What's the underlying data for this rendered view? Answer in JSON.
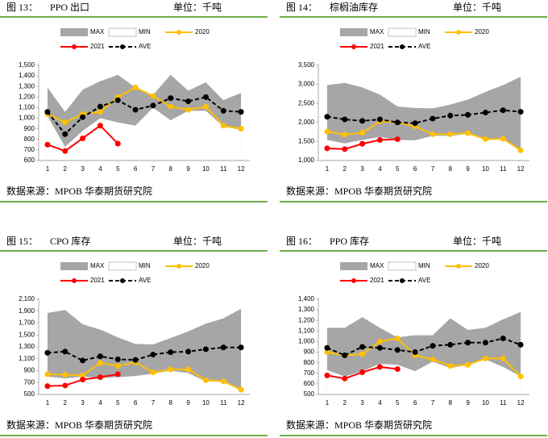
{
  "chart_data": [
    {
      "type": "line",
      "figure_label": "图 13：",
      "title": "PPO 出口",
      "unit": "单位：千吨",
      "source": "数据来源：MPOB  华泰期货研究院",
      "categories": [
        1,
        2,
        3,
        4,
        5,
        6,
        7,
        8,
        9,
        10,
        11,
        12
      ],
      "ylim": [
        600,
        1500
      ],
      "yticks": [
        600,
        700,
        800,
        900,
        {
          "value": 1000,
          "label": "1,000"
        },
        {
          "value": 1100,
          "label": "1,100"
        },
        {
          "value": 1200,
          "label": "1,200"
        },
        {
          "value": 1300,
          "label": "1,300"
        },
        {
          "value": 1400,
          "label": "1,400"
        },
        {
          "value": 1500,
          "label": "1,500"
        }
      ],
      "series": [
        {
          "name": "MAX",
          "color": "#a6a6a6",
          "style": "area",
          "values": [
            1290,
            1060,
            1270,
            1350,
            1410,
            1290,
            1220,
            1410,
            1260,
            1340,
            1170,
            1240
          ]
        },
        {
          "name": "MIN",
          "color": "#ffffff",
          "style": "area",
          "values": [
            1020,
            730,
            880,
            1000,
            960,
            930,
            1100,
            980,
            1070,
            1070,
            920,
            890
          ]
        },
        {
          "name": "2020",
          "color": "#ffc000",
          "style": "line",
          "values": [
            1040,
            960,
            1040,
            1060,
            1200,
            1290,
            1210,
            1110,
            1080,
            1110,
            930,
            900
          ]
        },
        {
          "name": "2021",
          "color": "#ff0000",
          "style": "line",
          "values": [
            750,
            690,
            810,
            930,
            760,
            null,
            null,
            null,
            null,
            null,
            null,
            null
          ]
        },
        {
          "name": "AVE",
          "color": "#000000",
          "style": "dash",
          "values": [
            1060,
            850,
            1010,
            1110,
            1170,
            1080,
            1120,
            1190,
            1160,
            1200,
            1070,
            1060
          ]
        }
      ]
    },
    {
      "type": "line",
      "figure_label": "图 14：",
      "title": "棕榈油库存",
      "unit": "单位：千吨",
      "source": "数据来源：MPOB  华泰期货研究院",
      "categories": [
        1,
        2,
        3,
        4,
        5,
        6,
        7,
        8,
        9,
        10,
        11,
        12
      ],
      "ylim": [
        1000,
        3500
      ],
      "yticks": [
        {
          "value": 1000,
          "label": "1,000"
        },
        {
          "value": 1500,
          "label": "1,500"
        },
        {
          "value": 2000,
          "label": "2,000"
        },
        {
          "value": 2500,
          "label": "2,500"
        },
        {
          "value": 3000,
          "label": "3,000"
        },
        {
          "value": 3500,
          "label": "3,500"
        }
      ],
      "series": [
        {
          "name": "MAX",
          "color": "#a6a6a6",
          "style": "area",
          "values": [
            2980,
            3040,
            2920,
            2730,
            2420,
            2380,
            2370,
            2470,
            2600,
            2800,
            2980,
            3200
          ]
        },
        {
          "name": "MIN",
          "color": "#ffffff",
          "style": "area",
          "values": [
            1540,
            1450,
            1540,
            1620,
            1540,
            1530,
            1650,
            1650,
            1700,
            1580,
            1560,
            1240
          ]
        },
        {
          "name": "2020",
          "color": "#ffc000",
          "style": "line",
          "values": [
            1760,
            1680,
            1730,
            2030,
            2000,
            1900,
            1690,
            1690,
            1720,
            1560,
            1570,
            1270
          ]
        },
        {
          "name": "2021",
          "color": "#ff0000",
          "style": "line",
          "values": [
            1320,
            1300,
            1440,
            1540,
            1560,
            null,
            null,
            null,
            null,
            null,
            null,
            null
          ]
        },
        {
          "name": "AVE",
          "color": "#000000",
          "style": "dash",
          "values": [
            2150,
            2080,
            2040,
            2080,
            2000,
            1980,
            2100,
            2180,
            2200,
            2260,
            2320,
            2280
          ]
        }
      ]
    },
    {
      "type": "line",
      "figure_label": "图 15：",
      "title": "CPO 库存",
      "unit": "单位：千吨",
      "source": "数据来源：MPOB  华泰期货研究院",
      "categories": [
        1,
        2,
        3,
        4,
        5,
        6,
        7,
        8,
        9,
        10,
        11,
        12
      ],
      "ylim": [
        500,
        2100
      ],
      "yticks": [
        500,
        700,
        900,
        {
          "value": 1100,
          "label": "1,100"
        },
        {
          "value": 1300,
          "label": "1,300"
        },
        {
          "value": 1500,
          "label": "1,500"
        },
        {
          "value": 1700,
          "label": "1,700"
        },
        {
          "value": 1900,
          "label": "1,900"
        },
        {
          "value": 2100,
          "label": "2,100"
        }
      ],
      "series": [
        {
          "name": "MAX",
          "color": "#a6a6a6",
          "style": "area",
          "values": [
            1870,
            1920,
            1680,
            1590,
            1460,
            1350,
            1340,
            1450,
            1560,
            1690,
            1780,
            1940
          ]
        },
        {
          "name": "MIN",
          "color": "#ffffff",
          "style": "area",
          "values": [
            800,
            770,
            800,
            780,
            790,
            810,
            850,
            900,
            860,
            720,
            720,
            560
          ]
        },
        {
          "name": "2020",
          "color": "#ffc000",
          "style": "line",
          "values": [
            840,
            830,
            820,
            1030,
            980,
            1040,
            870,
            920,
            920,
            740,
            720,
            580
          ]
        },
        {
          "name": "2021",
          "color": "#ff0000",
          "style": "line",
          "values": [
            640,
            650,
            750,
            790,
            840,
            null,
            null,
            null,
            null,
            null,
            null,
            null
          ]
        },
        {
          "name": "AVE",
          "color": "#000000",
          "style": "dash",
          "values": [
            1200,
            1220,
            1070,
            1140,
            1090,
            1080,
            1170,
            1210,
            1220,
            1260,
            1290,
            1290
          ]
        }
      ]
    },
    {
      "type": "line",
      "figure_label": "图 16：",
      "title": "PPO 库存",
      "unit": "单位：千吨",
      "source": "数据来源：MPOB  华泰期货研究院",
      "categories": [
        1,
        2,
        3,
        4,
        5,
        6,
        7,
        8,
        9,
        10,
        11,
        12
      ],
      "ylim": [
        500,
        1400
      ],
      "yticks": [
        500,
        600,
        700,
        800,
        900,
        {
          "value": 1000,
          "label": "1,000"
        },
        {
          "value": 1100,
          "label": "1,100"
        },
        {
          "value": 1200,
          "label": "1,200"
        },
        {
          "value": 1300,
          "label": "1,300"
        },
        {
          "value": 1400,
          "label": "1,400"
        }
      ],
      "series": [
        {
          "name": "MAX",
          "color": "#a6a6a6",
          "style": "area",
          "values": [
            1130,
            1130,
            1230,
            1130,
            1040,
            1060,
            1060,
            1220,
            1110,
            1130,
            1210,
            1280
          ]
        },
        {
          "name": "MIN",
          "color": "#ffffff",
          "style": "area",
          "values": [
            730,
            670,
            720,
            790,
            780,
            720,
            810,
            750,
            780,
            830,
            760,
            670
          ]
        },
        {
          "name": "2020",
          "color": "#ffc000",
          "style": "line",
          "values": [
            900,
            870,
            880,
            1000,
            1030,
            870,
            830,
            770,
            780,
            840,
            840,
            670
          ]
        },
        {
          "name": "2021",
          "color": "#ff0000",
          "style": "line",
          "values": [
            680,
            650,
            710,
            760,
            740,
            null,
            null,
            null,
            null,
            null,
            null,
            null
          ]
        },
        {
          "name": "AVE",
          "color": "#000000",
          "style": "dash",
          "values": [
            940,
            870,
            950,
            940,
            920,
            900,
            960,
            970,
            990,
            990,
            1030,
            970
          ]
        }
      ]
    }
  ]
}
